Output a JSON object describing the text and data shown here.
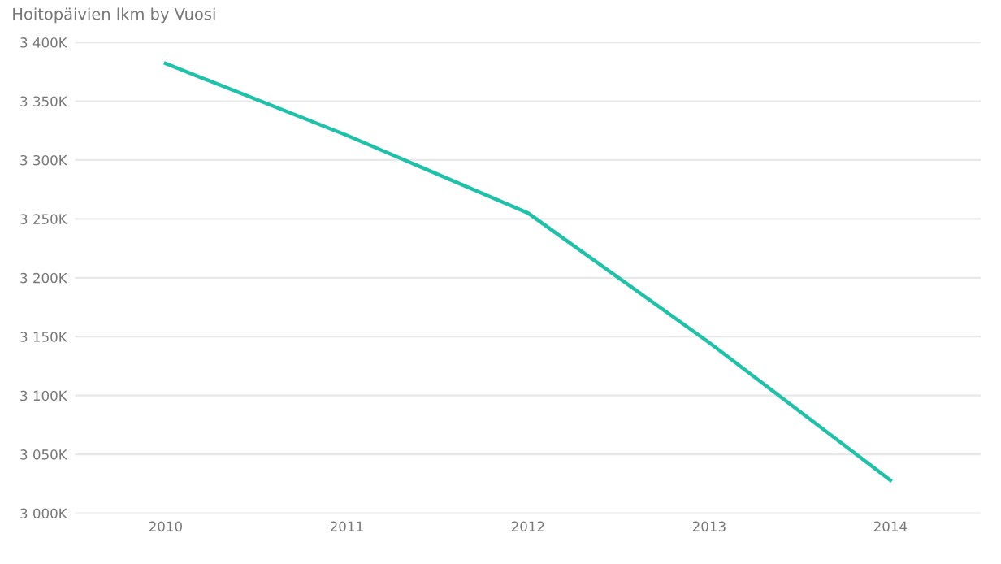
{
  "chart_data": {
    "type": "line",
    "title": "Hoitopäivien lkm by Vuosi",
    "categories": [
      "2010",
      "2011",
      "2012",
      "2013",
      "2014"
    ],
    "series": [
      {
        "color": "#1fc1a8",
        "values": [
          3382,
          3321,
          3255,
          3145,
          3028
        ]
      }
    ],
    "ylim": [
      3000,
      3400
    ],
    "yticks": [
      {
        "value": 3000,
        "label": "3 000K"
      },
      {
        "value": 3050,
        "label": "3 050K"
      },
      {
        "value": 3100,
        "label": "3 100K"
      },
      {
        "value": 3150,
        "label": "3 150K"
      },
      {
        "value": 3200,
        "label": "3 200K"
      },
      {
        "value": 3250,
        "label": "3 250K"
      },
      {
        "value": 3300,
        "label": "3 300K"
      },
      {
        "value": 3350,
        "label": "3 350K"
      },
      {
        "value": 3400,
        "label": "3 400K"
      }
    ],
    "grid": "y",
    "legend": false,
    "marker": "none",
    "line_style": "solid"
  }
}
